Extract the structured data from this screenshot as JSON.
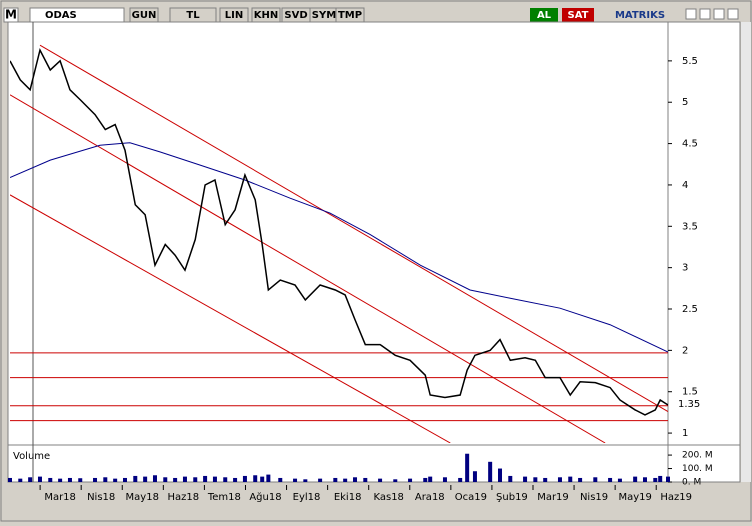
{
  "toolbar": {
    "logo": "M",
    "symbol": "ODAS",
    "buttons": [
      "GUN",
      "TL",
      "LIN",
      "KHN",
      "SVD",
      "SYM",
      "TMP"
    ],
    "buy": "AL",
    "sell": "SAT",
    "brand": "MATRIKS"
  },
  "chart_data": {
    "type": "line",
    "x": [
      -1.22,
      -0.97,
      -0.73,
      -0.49,
      -0.24,
      0,
      0.24,
      0.49,
      0.85,
      1.1,
      1.34,
      1.58,
      1.83,
      2.07,
      2.31,
      2.56,
      2.8,
      3.04,
      3.29,
      3.53,
      3.77,
      4.02,
      4.26,
      4.5,
      4.75,
      4.92,
      5.07,
      5.36,
      5.72,
      5.97,
      6.33,
      6.7,
      6.94,
      7.18,
      7.43,
      7.79,
      8.16,
      8.52,
      8.89,
      9.01,
      9.37,
      9.74,
      9.91,
      10.1,
      10.47,
      10.71,
      10.96,
      11.32,
      11.57,
      11.81,
      12.17,
      12.42,
      12.66,
      13.03,
      13.39,
      13.63,
      14.0,
      14.24,
      14.49,
      14.61,
      14.8
    ],
    "series": [
      {
        "color": "#000000",
        "values": [
          5.5,
          5.27,
          5.15,
          5.63,
          5.39,
          5.5,
          5.15,
          5.03,
          4.85,
          4.67,
          4.73,
          4.42,
          3.76,
          3.64,
          3.03,
          3.28,
          3.15,
          2.97,
          3.34,
          4.0,
          4.06,
          3.52,
          3.7,
          4.12,
          3.82,
          3.28,
          2.73,
          2.85,
          2.79,
          2.61,
          2.79,
          2.73,
          2.67,
          2.37,
          2.07,
          2.07,
          1.94,
          1.88,
          1.7,
          1.46,
          1.43,
          1.46,
          1.76,
          1.94,
          2.0,
          2.13,
          1.88,
          1.91,
          1.88,
          1.67,
          1.67,
          1.46,
          1.62,
          1.61,
          1.55,
          1.4,
          1.28,
          1.22,
          1.28,
          1.4,
          1.34
        ]
      }
    ],
    "moving_average": {
      "color": "#00008b",
      "x": [
        -1.22,
        -0.24,
        0.97,
        1.7,
        2.43,
        3.41,
        4.5,
        5.6,
        6.57,
        7.55,
        8.77,
        9.98,
        10.96,
        12.17,
        13.39,
        14.8
      ],
      "values": [
        4.09,
        4.3,
        4.48,
        4.51,
        4.4,
        4.24,
        4.06,
        3.84,
        3.66,
        3.4,
        3.03,
        2.73,
        2.63,
        2.51,
        2.31,
        1.98
      ]
    },
    "level_color": "#cc0000",
    "levels": [
      1.97,
      1.67,
      1.33,
      1.15
    ],
    "trendlines": [
      [
        -0.49,
        5.69,
        14.8,
        1.26
      ],
      [
        -1.22,
        5.09,
        13.27,
        0.88
      ],
      [
        -1.22,
        3.88,
        9.5,
        0.88
      ]
    ],
    "last_price": 1.35,
    "xlim": [
      -1.22,
      14.8
    ],
    "ylim": [
      0.88,
      5.97
    ],
    "yticks": [
      1,
      1.5,
      2,
      2.5,
      3,
      3.5,
      4,
      4.5,
      5,
      5.5
    ],
    "xticks": [
      {
        "value": 0,
        "label": "Mar18"
      },
      {
        "value": 1,
        "label": "Nis18"
      },
      {
        "value": 2,
        "label": "May18"
      },
      {
        "value": 3,
        "label": "Haz18"
      },
      {
        "value": 4,
        "label": "Tem18"
      },
      {
        "value": 5,
        "label": "Ağu18"
      },
      {
        "value": 6,
        "label": "Eyl18"
      },
      {
        "value": 7,
        "label": "Eki18"
      },
      {
        "value": 8,
        "label": "Kas18"
      },
      {
        "value": 9,
        "label": "Ara18"
      },
      {
        "value": 10,
        "label": "Oca19"
      },
      {
        "value": 11,
        "label": "Şub19"
      },
      {
        "value": 12,
        "label": "Mar19"
      },
      {
        "value": 13,
        "label": "Nis19"
      },
      {
        "value": 14,
        "label": "May19"
      },
      {
        "value": 15,
        "label": "Haz19"
      }
    ],
    "volume": {
      "label": "Volume",
      "color": "#000080",
      "ylim": [
        0,
        260
      ],
      "yticks": [
        {
          "value": 0,
          "label": "0. M"
        },
        {
          "value": 100,
          "label": "100. M"
        },
        {
          "value": 200,
          "label": "200. M"
        }
      ],
      "values": [
        30,
        25,
        35,
        40,
        30,
        25,
        30,
        28,
        30,
        35,
        25,
        30,
        45,
        40,
        50,
        35,
        30,
        40,
        35,
        45,
        40,
        35,
        30,
        45,
        50,
        40,
        55,
        30,
        25,
        20,
        25,
        30,
        25,
        35,
        30,
        25,
        20,
        25,
        30,
        40,
        35,
        30,
        210,
        80,
        150,
        100,
        45,
        40,
        35,
        30,
        35,
        40,
        30,
        35,
        30,
        25,
        40,
        35,
        30,
        45,
        40
      ]
    }
  }
}
